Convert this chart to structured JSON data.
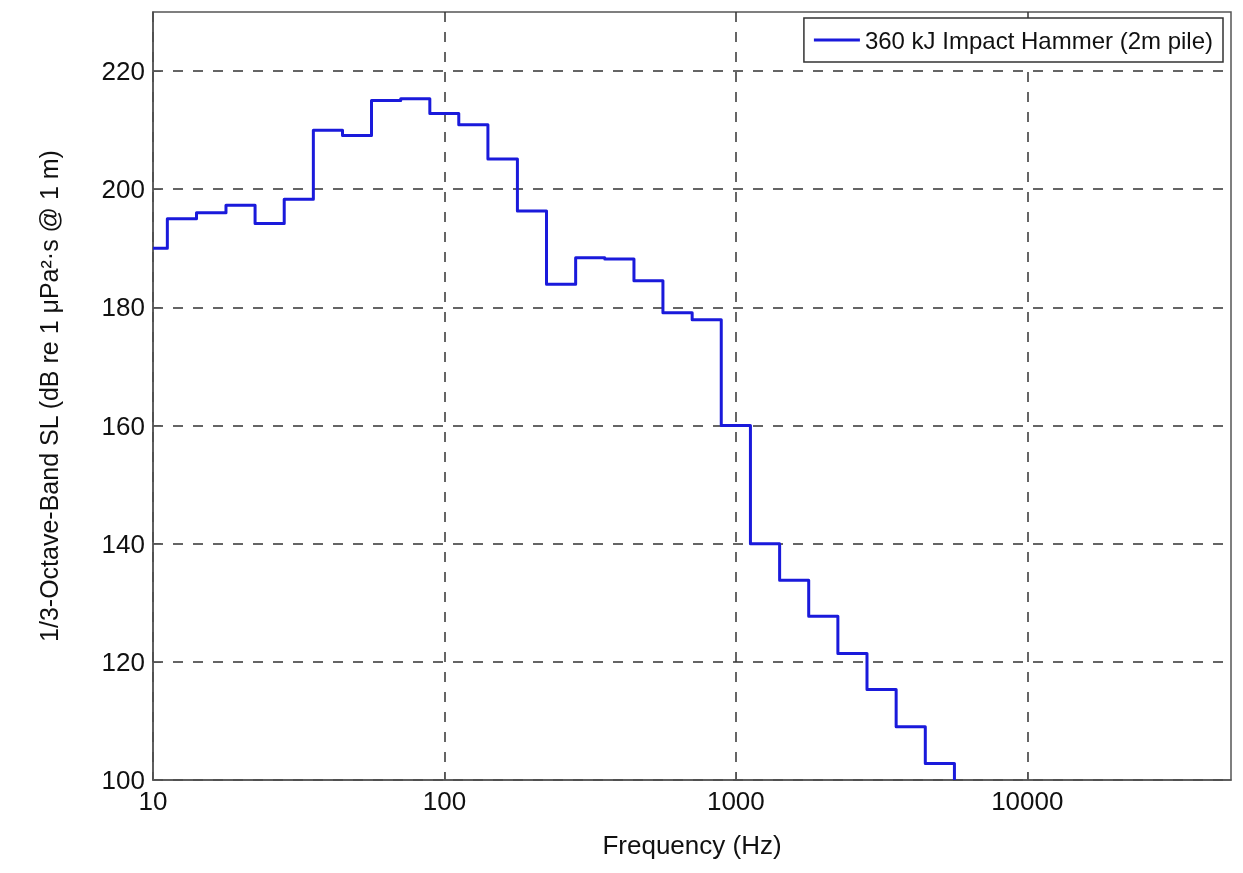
{
  "chart_data": {
    "type": "step",
    "xlabel": "Frequency (Hz)",
    "ylabel": "1/3-Octave-Band SL (dB re 1 μPa²·s @ 1 m)",
    "x": [
      10,
      11.2,
      14.1,
      17.8,
      22.4,
      28.2,
      35.5,
      44.7,
      56.2,
      70.8,
      89.1,
      112,
      141,
      178,
      224,
      282,
      355,
      447,
      562,
      708,
      891,
      1122,
      1413,
      1778,
      2239,
      2818,
      3548,
      4467,
      5623
    ],
    "series": [
      {
        "name": "360 kJ Impact Hammer (2m pile)",
        "color": "#1a1adb",
        "values": [
          190,
          195,
          196,
          197.3,
          194.2,
          198.3,
          210,
          209.1,
          215,
          215.3,
          212.8,
          210.9,
          205.1,
          196.3,
          183.9,
          188.4,
          188.2,
          184.5,
          179.1,
          177.9,
          160,
          140,
          133.8,
          127.7,
          121.4,
          115.3,
          109,
          102.8,
          100
        ]
      }
    ],
    "log": "x",
    "xlim": [
      10,
      50000
    ],
    "xticks": [
      10,
      100,
      1000,
      10000
    ],
    "ylim": [
      100,
      230
    ],
    "yticks": [
      100,
      120,
      140,
      160,
      180,
      200,
      220
    ],
    "grid": true,
    "legend": "top right",
    "line_style": "solid",
    "marker": "none"
  }
}
